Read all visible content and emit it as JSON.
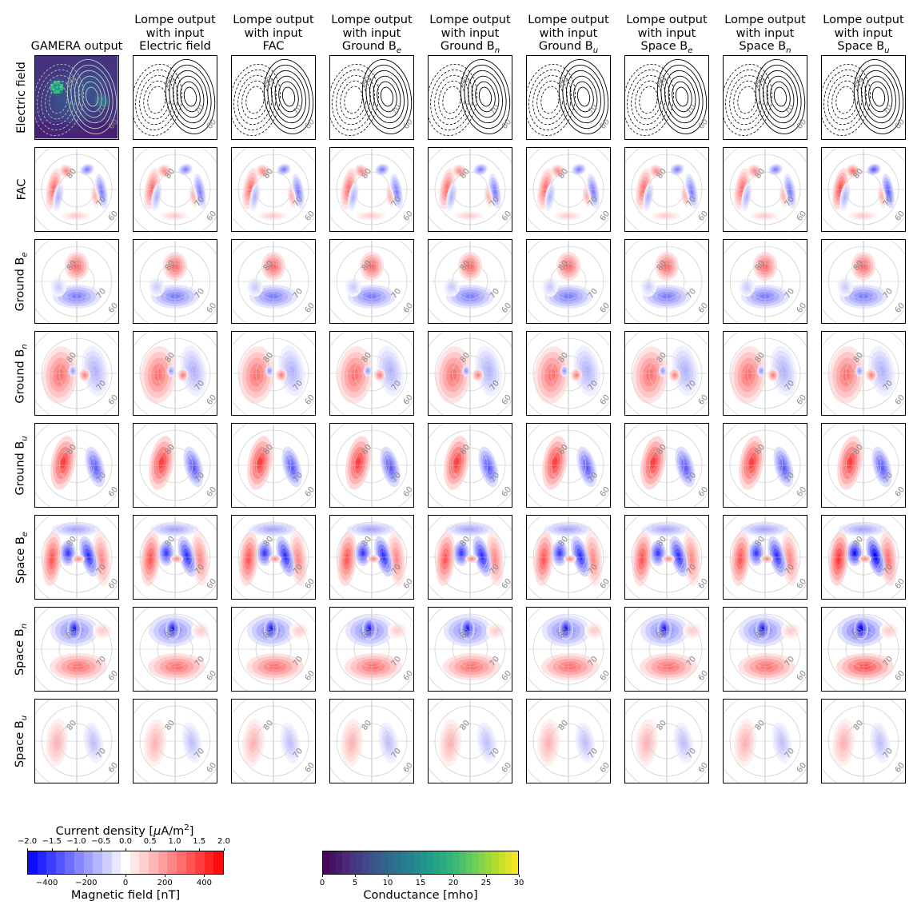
{
  "chart_data": {
    "type": "heatmap",
    "title": "",
    "columns": [
      "GAMERA output",
      "Lompe output with input Electric field",
      "Lompe output with input FAC",
      "Lompe output with input Ground B_e",
      "Lompe output with input Ground B_n",
      "Lompe output with input Ground B_u",
      "Lompe output with input Space B_e",
      "Lompe output with input Space B_n",
      "Lompe output with input Space B_u"
    ],
    "rows": [
      "Electric field",
      "FAC",
      "Ground B_e",
      "Ground B_n",
      "Ground B_u",
      "Space B_e",
      "Space B_n",
      "Space B_u"
    ],
    "latitude_labels": [
      "80",
      "70",
      "60"
    ],
    "colorbars": [
      {
        "name": "current_magnetic",
        "top_label": "Current density [μA/m²]",
        "top_ticks": [
          "−2.0",
          "−1.5",
          "−1.0",
          "−0.5",
          "0.0",
          "0.5",
          "1.0",
          "1.5",
          "2.0"
        ],
        "top_range": [
          -2.0,
          2.0
        ],
        "bottom_label": "Magnetic field [nT]",
        "bottom_ticks": [
          "−400",
          "−200",
          "0",
          "200",
          "400"
        ],
        "bottom_range": [
          -500,
          500
        ],
        "colormap": "bwr",
        "levels": 21
      },
      {
        "name": "conductance",
        "bottom_label": "Conductance [mho]",
        "bottom_ticks": [
          "0",
          "5",
          "10",
          "15",
          "20",
          "25",
          "30"
        ],
        "range": [
          0,
          30
        ],
        "colormap": "viridis",
        "levels": 30
      }
    ],
    "panel_types": {
      "Electric field": "contour lines (solid positive, dashed negative); GAMERA column shows conductance map",
      "FAC": "filled contours, bwr",
      "Ground B_e": "filled contours, bwr",
      "Ground B_n": "filled contours, bwr",
      "Ground B_u": "filled contours, bwr",
      "Space B_e": "filled contours, bwr",
      "Space B_n": "filled contours, bwr",
      "Space B_u": "filled contours, bwr"
    },
    "colors": {
      "negative": "#0000ff",
      "positive": "#ff0000",
      "conductance_low": "#440154",
      "conductance_high": "#fde725"
    }
  },
  "headers": [
    {
      "line1": "",
      "line2": "",
      "line3": "GAMERA output",
      "sub": ""
    },
    {
      "line1": "Lompe output",
      "line2": "with input",
      "line3": "Electric field",
      "sub": ""
    },
    {
      "line1": "Lompe output",
      "line2": "with input",
      "line3": "FAC",
      "sub": ""
    },
    {
      "line1": "Lompe output",
      "line2": "with input",
      "line3": "Ground B",
      "sub": "e"
    },
    {
      "line1": "Lompe output",
      "line2": "with input",
      "line3": "Ground B",
      "sub": "n"
    },
    {
      "line1": "Lompe output",
      "line2": "with input",
      "line3": "Ground B",
      "sub": "u"
    },
    {
      "line1": "Lompe output",
      "line2": "with input",
      "line3": "Space B",
      "sub": "e"
    },
    {
      "line1": "Lompe output",
      "line2": "with input",
      "line3": "Space B",
      "sub": "n"
    },
    {
      "line1": "Lompe output",
      "line2": "with input",
      "line3": "Space B",
      "sub": "u"
    }
  ],
  "row_labels": [
    {
      "text": "Electric field",
      "sub": ""
    },
    {
      "text": "FAC",
      "sub": ""
    },
    {
      "text": "Ground B",
      "sub": "e"
    },
    {
      "text": "Ground B",
      "sub": "n"
    },
    {
      "text": "Ground B",
      "sub": "u"
    },
    {
      "text": "Space B",
      "sub": "e"
    },
    {
      "text": "Space B",
      "sub": "n"
    },
    {
      "text": "Space B",
      "sub": "u"
    }
  ]
}
